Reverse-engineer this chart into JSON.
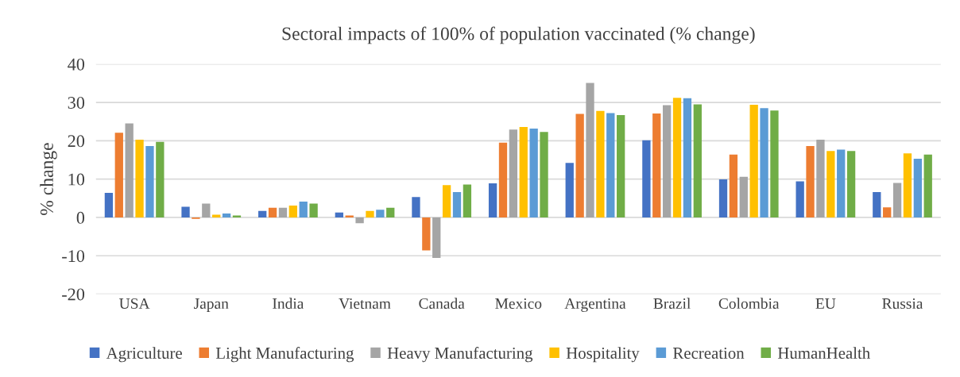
{
  "chart_data": {
    "type": "bar",
    "title": "Sectoral impacts of 100% of population vaccinated (% change)",
    "ylabel": "% change",
    "categories": [
      "USA",
      "Japan",
      "India",
      "Vietnam",
      "Canada",
      "Mexico",
      "Argentina",
      "Brazil",
      "Colombia",
      "EU",
      "Russia"
    ],
    "series": [
      {
        "name": "Agriculture",
        "color": "#4472c4",
        "values": [
          6.4,
          2.8,
          1.7,
          1.3,
          5.3,
          8.9,
          14.2,
          20.1,
          9.9,
          9.4,
          6.6
        ]
      },
      {
        "name": "Light Manufacturing",
        "color": "#ed7d31",
        "values": [
          22.1,
          -0.4,
          2.5,
          0.5,
          -8.6,
          19.5,
          27.0,
          27.1,
          16.4,
          18.6,
          2.6
        ]
      },
      {
        "name": "Heavy Manufacturing",
        "color": "#a5a5a5",
        "values": [
          24.5,
          3.6,
          2.5,
          -1.5,
          -10.6,
          22.9,
          35.1,
          29.3,
          10.6,
          20.3,
          9.0
        ]
      },
      {
        "name": "Hospitality",
        "color": "#ffc000",
        "values": [
          20.3,
          0.7,
          3.1,
          1.7,
          8.4,
          23.6,
          27.8,
          31.2,
          29.4,
          17.3,
          16.7
        ]
      },
      {
        "name": "Recreation",
        "color": "#5b9bd5",
        "values": [
          18.6,
          1.0,
          4.1,
          2.0,
          6.6,
          23.2,
          27.2,
          31.1,
          28.5,
          17.7,
          15.3
        ]
      },
      {
        "name": "HumanHealth",
        "color": "#70ad47",
        "values": [
          19.7,
          0.5,
          3.6,
          2.5,
          8.6,
          22.3,
          26.7,
          29.5,
          27.9,
          17.3,
          16.4
        ]
      }
    ],
    "ylim": [
      -20,
      40
    ],
    "yticks": [
      -20,
      -10,
      0,
      10,
      20,
      30,
      40
    ],
    "grid": "y",
    "legend": "bottom"
  }
}
